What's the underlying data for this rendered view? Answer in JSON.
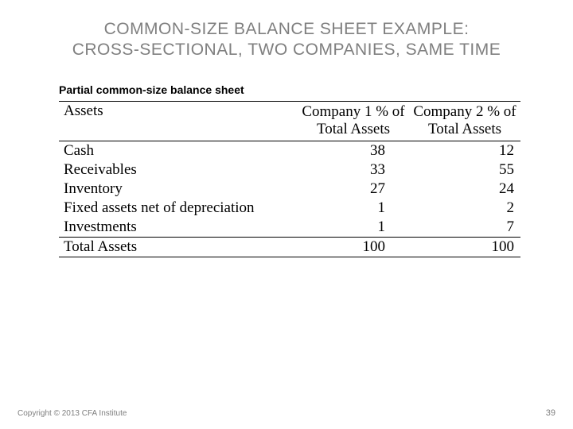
{
  "title_line1": "COMMON-SIZE BALANCE SHEET EXAMPLE:",
  "title_line2": "CROSS-SECTIONAL, TWO COMPANIES, SAME TIME",
  "subtitle": "Partial common-size balance sheet",
  "table": {
    "header": {
      "col_a": "Assets",
      "col_b": "Company 1 % of Total Assets",
      "col_c": "Company 2 % of Total Assets"
    },
    "rows": [
      {
        "label": "Cash",
        "c1": "38",
        "c2": "12"
      },
      {
        "label": "Receivables",
        "c1": "33",
        "c2": "55"
      },
      {
        "label": "Inventory",
        "c1": "27",
        "c2": "24"
      },
      {
        "label": "Fixed assets net of depreciation",
        "c1": "1",
        "c2": "2"
      },
      {
        "label": "Investments",
        "c1": "1",
        "c2": "7"
      },
      {
        "label": "Total Assets",
        "c1": "100",
        "c2": "100"
      }
    ]
  },
  "footer": "Copyright © 2013 CFA Institute",
  "pagenum": "39"
}
